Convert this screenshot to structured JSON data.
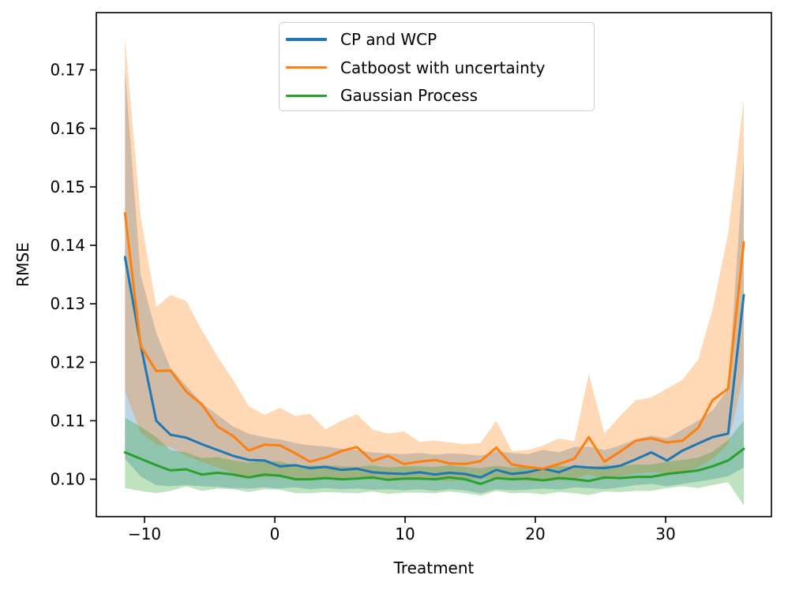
{
  "chart_data": {
    "type": "line",
    "title": "",
    "xlabel": "Treatment",
    "ylabel": "RMSE",
    "xlim": [
      -13.7,
      38.12
    ],
    "ylim": [
      0.0936,
      0.1798
    ],
    "grid": false,
    "legend_position": "upper-center-inside",
    "band_opacity": 0.3,
    "x_ticks": [
      -10,
      0,
      10,
      20,
      30
    ],
    "x_tick_labels": [
      "−10",
      "0",
      "10",
      "20",
      "30"
    ],
    "y_ticks": [
      0.1,
      0.11,
      0.12,
      0.13,
      0.14,
      0.15,
      0.16,
      0.17
    ],
    "y_tick_labels": [
      "0.10",
      "0.11",
      "0.12",
      "0.13",
      "0.14",
      "0.15",
      "0.16",
      "0.17"
    ],
    "x": [
      -11.5,
      -10.3,
      -9.1,
      -8.0,
      -6.8,
      -5.6,
      -4.4,
      -3.2,
      -2.0,
      -0.8,
      0.4,
      1.6,
      2.7,
      3.9,
      5.1,
      6.3,
      7.5,
      8.7,
      9.9,
      11.1,
      12.3,
      13.4,
      14.6,
      15.8,
      17.0,
      18.2,
      19.4,
      20.6,
      21.8,
      23.0,
      24.1,
      25.3,
      26.5,
      27.7,
      28.9,
      30.1,
      31.3,
      32.5,
      33.6,
      34.8,
      36.0
    ],
    "series": [
      {
        "name": "CP and WCP",
        "color": "#1f77b4",
        "values": [
          0.138,
          0.123,
          0.11,
          0.1076,
          0.1071,
          0.106,
          0.105,
          0.104,
          0.1033,
          0.1032,
          0.1022,
          0.1024,
          0.1019,
          0.1021,
          0.1016,
          0.1018,
          0.1012,
          0.101,
          0.1009,
          0.1012,
          0.1008,
          0.1011,
          0.1009,
          0.1003,
          0.1016,
          0.1009,
          0.1012,
          0.1018,
          0.1012,
          0.1022,
          0.102,
          0.1019,
          0.1023,
          0.1034,
          0.1046,
          0.1032,
          0.1049,
          0.1061,
          0.1072,
          0.1078,
          0.1315
        ],
        "band_lower": [
          0.1035,
          0.1005,
          0.099,
          0.0988,
          0.099,
          0.0988,
          0.0987,
          0.0985,
          0.0984,
          0.0986,
          0.0984,
          0.0986,
          0.0983,
          0.0985,
          0.0983,
          0.0984,
          0.0982,
          0.0983,
          0.0981,
          0.0983,
          0.098,
          0.0983,
          0.0981,
          0.0976,
          0.0983,
          0.0981,
          0.0982,
          0.0984,
          0.0982,
          0.0986,
          0.0985,
          0.0983,
          0.0986,
          0.099,
          0.0992,
          0.0988,
          0.0992,
          0.0996,
          0.1,
          0.1005,
          0.102
        ],
        "band_upper": [
          0.17,
          0.135,
          0.125,
          0.119,
          0.116,
          0.113,
          0.111,
          0.109,
          0.1078,
          0.1072,
          0.1068,
          0.1062,
          0.1058,
          0.1056,
          0.1052,
          0.105,
          0.1046,
          0.1044,
          0.1043,
          0.1045,
          0.1042,
          0.1044,
          0.1043,
          0.104,
          0.1048,
          0.1045,
          0.1043,
          0.105,
          0.1046,
          0.1055,
          0.1056,
          0.105,
          0.1058,
          0.1068,
          0.1075,
          0.107,
          0.1085,
          0.11,
          0.1118,
          0.1155,
          0.155
        ]
      },
      {
        "name": "Catboost with uncertainty",
        "color": "#ff7f0e",
        "values": [
          0.1455,
          0.1228,
          0.1185,
          0.1186,
          0.115,
          0.1128,
          0.109,
          0.1074,
          0.1049,
          0.1059,
          0.1058,
          0.1044,
          0.103,
          0.1037,
          0.1048,
          0.1055,
          0.1031,
          0.104,
          0.1026,
          0.103,
          0.1033,
          0.1027,
          0.1026,
          0.1031,
          0.1054,
          0.1025,
          0.1021,
          0.1018,
          0.1026,
          0.1035,
          0.1072,
          0.103,
          0.1047,
          0.1066,
          0.107,
          0.1063,
          0.1066,
          0.1088,
          0.1135,
          0.1155,
          0.1405
        ],
        "band_lower": [
          0.115,
          0.108,
          0.106,
          0.1055,
          0.104,
          0.103,
          0.102,
          0.101,
          0.1005,
          0.1003,
          0.1005,
          0.1,
          0.0998,
          0.1,
          0.1002,
          0.1003,
          0.0999,
          0.1,
          0.0998,
          0.1,
          0.1,
          0.0996,
          0.1,
          0.1,
          0.1003,
          0.0999,
          0.0997,
          0.0996,
          0.0998,
          0.1,
          0.1008,
          0.0999,
          0.1005,
          0.101,
          0.1012,
          0.101,
          0.1012,
          0.102,
          0.1035,
          0.106,
          0.118
        ],
        "band_upper": [
          0.1755,
          0.145,
          0.1295,
          0.1315,
          0.1305,
          0.1255,
          0.121,
          0.117,
          0.1125,
          0.111,
          0.1122,
          0.1108,
          0.1112,
          0.1085,
          0.11,
          0.1111,
          0.1085,
          0.1078,
          0.1082,
          0.1064,
          0.1066,
          0.1063,
          0.106,
          0.1062,
          0.11,
          0.1048,
          0.105,
          0.1058,
          0.107,
          0.1065,
          0.118,
          0.1078,
          0.1108,
          0.1135,
          0.114,
          0.1155,
          0.117,
          0.1205,
          0.129,
          0.142,
          0.165
        ]
      },
      {
        "name": "Gaussian Process",
        "color": "#2ca02c",
        "values": [
          0.1046,
          0.1035,
          0.1024,
          0.1015,
          0.1017,
          0.1008,
          0.1011,
          0.1008,
          0.1003,
          0.1008,
          0.1006,
          0.1,
          0.1,
          0.1002,
          0.1,
          0.1001,
          0.1003,
          0.0999,
          0.1001,
          0.1001,
          0.1,
          0.1003,
          0.1,
          0.0992,
          0.1002,
          0.1,
          0.1001,
          0.0998,
          0.1002,
          0.1,
          0.0997,
          0.1003,
          0.1002,
          0.1004,
          0.1004,
          0.1009,
          0.1012,
          0.1015,
          0.1022,
          0.1032,
          0.1052
        ],
        "band_lower": [
          0.0985,
          0.098,
          0.0976,
          0.098,
          0.0988,
          0.098,
          0.0984,
          0.0983,
          0.0978,
          0.0983,
          0.0982,
          0.0976,
          0.0976,
          0.0978,
          0.0977,
          0.0976,
          0.0979,
          0.0975,
          0.0977,
          0.0977,
          0.0976,
          0.0979,
          0.0976,
          0.0972,
          0.098,
          0.0976,
          0.0977,
          0.0974,
          0.0978,
          0.0976,
          0.0973,
          0.0979,
          0.0978,
          0.098,
          0.098,
          0.0985,
          0.0988,
          0.0985,
          0.099,
          0.0995,
          0.0955
        ],
        "band_upper": [
          0.1105,
          0.109,
          0.1072,
          0.105,
          0.1046,
          0.1036,
          0.1038,
          0.1032,
          0.1028,
          0.1032,
          0.103,
          0.1024,
          0.1023,
          0.1024,
          0.1022,
          0.1021,
          0.1024,
          0.102,
          0.1022,
          0.1022,
          0.1021,
          0.1024,
          0.1021,
          0.1019,
          0.1023,
          0.102,
          0.1022,
          0.1019,
          0.1023,
          0.1021,
          0.1018,
          0.1024,
          0.1023,
          0.1025,
          0.1025,
          0.103,
          0.1033,
          0.1037,
          0.1047,
          0.1067,
          0.11
        ]
      }
    ]
  },
  "legend": {
    "entries": [
      {
        "label": "CP and WCP",
        "color": "#1f77b4"
      },
      {
        "label": "Catboost with uncertainty",
        "color": "#ff7f0e"
      },
      {
        "label": "Gaussian Process",
        "color": "#2ca02c"
      }
    ]
  }
}
